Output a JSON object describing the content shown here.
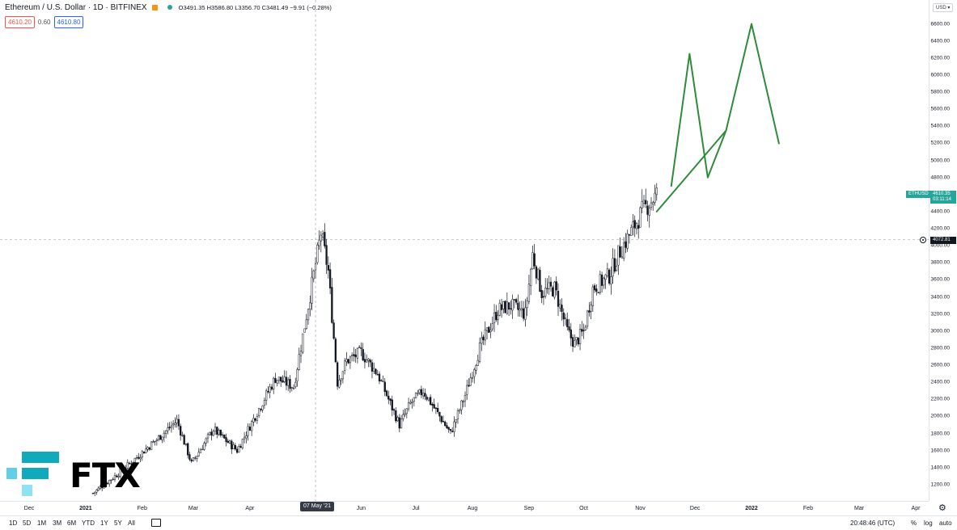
{
  "header": {
    "symbol_title": "Ethereum / U.S. Dollar · 1D · BITFINEX",
    "ohlc": "O3491.35 H3586.80 L3356.70 C3481.49 −9.91 (−0.28%)",
    "sell_price": "4610.20",
    "spread": "0.60",
    "buy_price": "4610.80"
  },
  "currency_selector": "USD ▾",
  "price_labels": {
    "symbol_tag": "ETHUSD",
    "last_price": "4610.35",
    "countdown": "03:11:14",
    "crosshair_price": "4072.81",
    "crosshair_date": "07 May '21"
  },
  "bottom_bar": {
    "timeframes": [
      "1D",
      "5D",
      "1M",
      "3M",
      "6M",
      "YTD",
      "1Y",
      "5Y",
      "All"
    ],
    "clock": "20:48:46 (UTC)",
    "percent_label": "%",
    "log_label": "log",
    "auto_label": "auto"
  },
  "logo": {
    "text": "FTX"
  },
  "colors": {
    "up": "#131722",
    "down": "#131722",
    "drawing": "#2e8b3a",
    "accent_green": "#26a69a",
    "ftx_teal": "#11a9bc",
    "ftx_light": "#5fd0e6"
  },
  "chart_data": {
    "type": "candlestick",
    "title": "Ethereum / U.S. Dollar · 1D · BITFINEX",
    "xlabel": "",
    "ylabel": "",
    "x_ticks": [
      "Dec",
      "2021",
      "Feb",
      "Mar",
      "Apr",
      "Jun",
      "Jul",
      "Aug",
      "Sep",
      "Oct",
      "Nov",
      "Dec",
      "2022",
      "Feb",
      "Mar",
      "Apr"
    ],
    "y_ticks": [
      1200,
      1400,
      1600,
      1800,
      2000,
      2200,
      2400,
      2600,
      2800,
      3000,
      3200,
      3400,
      3600,
      3800,
      4000,
      4200,
      4400,
      4600,
      4800,
      5000,
      5200,
      5400,
      5600,
      5800,
      6000,
      6200,
      6400,
      6600
    ],
    "ylim": [
      1000,
      6800
    ],
    "price_path": [
      [
        "2021-01-05",
        1100
      ],
      [
        "2021-01-20",
        1350
      ],
      [
        "2021-02-10",
        1750
      ],
      [
        "2021-02-20",
        1950
      ],
      [
        "2021-02-28",
        1450
      ],
      [
        "2021-03-12",
        1850
      ],
      [
        "2021-03-25",
        1600
      ],
      [
        "2021-04-05",
        2050
      ],
      [
        "2021-04-15",
        2450
      ],
      [
        "2021-04-25",
        2350
      ],
      [
        "2021-05-03",
        3300
      ],
      [
        "2021-05-10",
        4150
      ],
      [
        "2021-05-14",
        3700
      ],
      [
        "2021-05-19",
        2400
      ],
      [
        "2021-05-24",
        2650
      ],
      [
        "2021-06-01",
        2750
      ],
      [
        "2021-06-10",
        2500
      ],
      [
        "2021-06-22",
        1900
      ],
      [
        "2021-06-28",
        2150
      ],
      [
        "2021-07-05",
        2300
      ],
      [
        "2021-07-20",
        1800
      ],
      [
        "2021-07-28",
        2250
      ],
      [
        "2021-08-05",
        2800
      ],
      [
        "2021-08-15",
        3250
      ],
      [
        "2021-08-22",
        3300
      ],
      [
        "2021-08-30",
        3200
      ],
      [
        "2021-09-03",
        3900
      ],
      [
        "2021-09-08",
        3450
      ],
      [
        "2021-09-15",
        3500
      ],
      [
        "2021-09-22",
        3000
      ],
      [
        "2021-09-26",
        2850
      ],
      [
        "2021-10-01",
        3000
      ],
      [
        "2021-10-06",
        3500
      ],
      [
        "2021-10-15",
        3650
      ],
      [
        "2021-10-20",
        3900
      ],
      [
        "2021-10-28",
        4200
      ],
      [
        "2021-11-02",
        4400
      ],
      [
        "2021-11-08",
        4550
      ],
      [
        "2021-11-10",
        4600
      ]
    ],
    "drawings": {
      "trend_line": [
        [
          "2021-11-10",
          4400
        ],
        [
          "2021-12-18",
          5350
        ]
      ],
      "projected_path": [
        [
          "2021-11-18",
          4700
        ],
        [
          "2021-11-28",
          6250
        ],
        [
          "2021-12-08",
          4800
        ],
        [
          "2021-12-18",
          5350
        ],
        [
          "2022-01-01",
          6600
        ],
        [
          "2022-01-16",
          5200
        ]
      ]
    },
    "crosshair": {
      "date": "2021-05-07",
      "price": 4072.81
    },
    "grid": false,
    "legend": "none"
  }
}
